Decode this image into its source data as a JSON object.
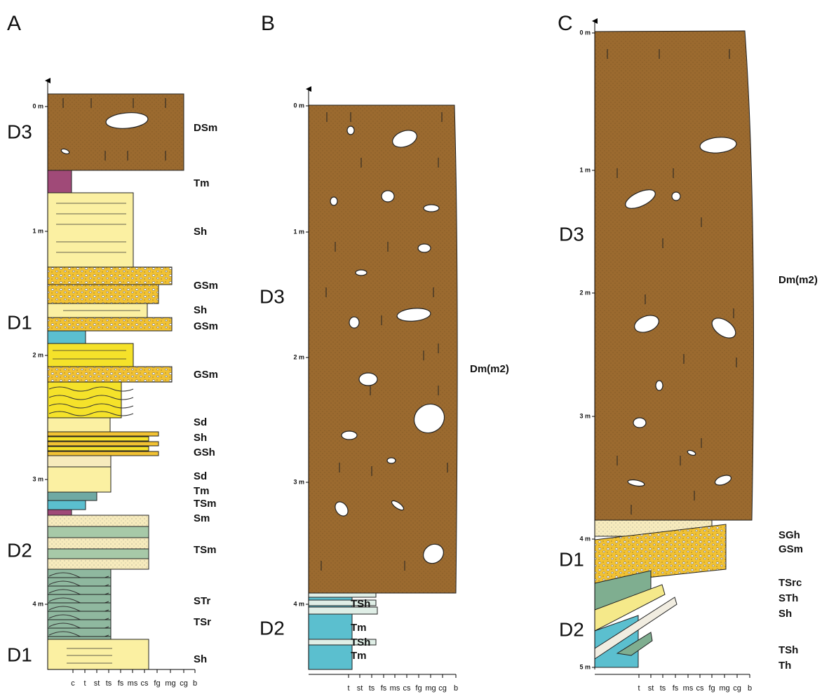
{
  "panels": [
    {
      "label": "A",
      "depth_ticks": [
        "0 m",
        "1 m",
        "2 m",
        "3 m",
        "4 m"
      ],
      "units": [
        "D3",
        "D1",
        "D2",
        "D1"
      ],
      "facies": [
        "DSm",
        "Tm",
        "Sh",
        "GSm",
        "Sh",
        "GSm",
        "GSm",
        "Sd",
        "Sh",
        "GSh",
        "Sd",
        "Tm",
        "TSm",
        "Sm",
        "TSm",
        "STr",
        "TSr",
        "Sh"
      ],
      "grain_size_axis": [
        "c",
        "t",
        "st",
        "ts",
        "fs",
        "ms",
        "cs",
        "fg",
        "mg",
        "cg",
        "b"
      ]
    },
    {
      "label": "B",
      "depth_ticks": [
        "0 m",
        "1 m",
        "2 m",
        "3 m",
        "4 m"
      ],
      "units": [
        "D3",
        "D2"
      ],
      "facies": [
        "Dm(m2)",
        "TSh",
        "Tm",
        "TSh",
        "Tm"
      ],
      "grain_size_axis": [
        "t",
        "st",
        "ts",
        "fs",
        "ms",
        "cs",
        "fg",
        "mg",
        "cg",
        "b"
      ]
    },
    {
      "label": "C",
      "depth_ticks": [
        "0 m",
        "1 m",
        "2 m",
        "3 m",
        "4 m",
        "5 m"
      ],
      "units": [
        "D3",
        "D1",
        "D2"
      ],
      "facies": [
        "Dm(m2)",
        "SGh",
        "GSm",
        "TSrc",
        "STh",
        "Sh",
        "TSh",
        "Th"
      ],
      "grain_size_axis": [
        "t",
        "st",
        "ts",
        "fs",
        "ms",
        "cs",
        "fg",
        "mg",
        "cg",
        "b"
      ]
    }
  ]
}
